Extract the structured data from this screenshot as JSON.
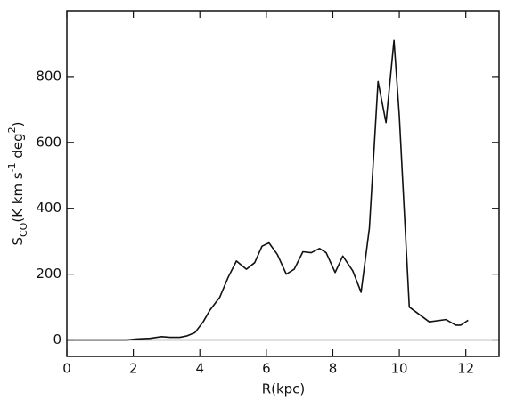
{
  "chart_data": {
    "type": "line",
    "xlabel": "R(kpc)",
    "ylabel": [
      "S",
      "CO",
      "(K km s",
      "-1",
      " deg",
      "2",
      ")"
    ],
    "x": [
      0,
      1,
      1.8,
      2.1,
      2.5,
      2.85,
      3.1,
      3.4,
      3.6,
      3.85,
      4.1,
      4.3,
      4.6,
      4.85,
      5.1,
      5.4,
      5.65,
      5.87,
      6.08,
      6.33,
      6.6,
      6.84,
      7.1,
      7.35,
      7.6,
      7.8,
      8.07,
      8.3,
      8.6,
      8.85,
      9.1,
      9.36,
      9.6,
      9.84,
      10.0,
      10.3,
      10.9,
      11.4,
      11.7,
      11.85,
      12.07
    ],
    "series": [
      {
        "color": "#111111",
        "values": [
          0,
          0,
          0,
          3,
          5,
          10,
          8,
          8,
          12,
          22,
          55,
          90,
          130,
          190,
          240,
          215,
          235,
          285,
          295,
          260,
          200,
          215,
          268,
          265,
          278,
          265,
          205,
          255,
          210,
          145,
          340,
          785,
          660,
          910,
          680,
          100,
          55,
          62,
          45,
          45,
          60
        ]
      }
    ],
    "xlim": [
      0,
      13
    ],
    "ylim": [
      -50,
      1000
    ],
    "xticks": [
      0,
      2,
      4,
      6,
      8,
      10,
      12
    ],
    "yticks": [
      0,
      200,
      400,
      600,
      800
    ],
    "zero_line": true
  }
}
